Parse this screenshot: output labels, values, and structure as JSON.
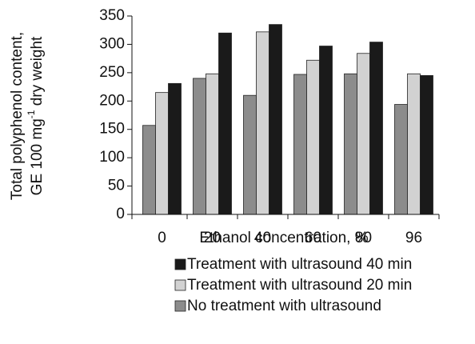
{
  "chart_data": {
    "type": "bar",
    "ylabel": {
      "line1": "Total polyphenol content,",
      "line2": [
        "GE 100 mg",
        "-1",
        " dry weight"
      ]
    },
    "xlabel": "Ethanol concentration, %",
    "categories": [
      "0",
      "20",
      "40",
      "60",
      "80",
      "96"
    ],
    "series": [
      {
        "name": "No treatment with ultrasound",
        "color": "#8c8c8c",
        "values": [
          157,
          240,
          210,
          247,
          248,
          194
        ]
      },
      {
        "name": "Treatment with ultrasound 20 min",
        "color": "#d2d2d2",
        "values": [
          215,
          248,
          322,
          272,
          284,
          248
        ]
      },
      {
        "name": "Treatment with ultrasound 40 min",
        "color": "#1a1a1a",
        "values": [
          231,
          320,
          335,
          297,
          304,
          245
        ]
      }
    ],
    "ylim": [
      0,
      350
    ],
    "yticks": [
      0,
      50,
      100,
      150,
      200,
      250,
      300,
      350
    ],
    "grid": false
  }
}
